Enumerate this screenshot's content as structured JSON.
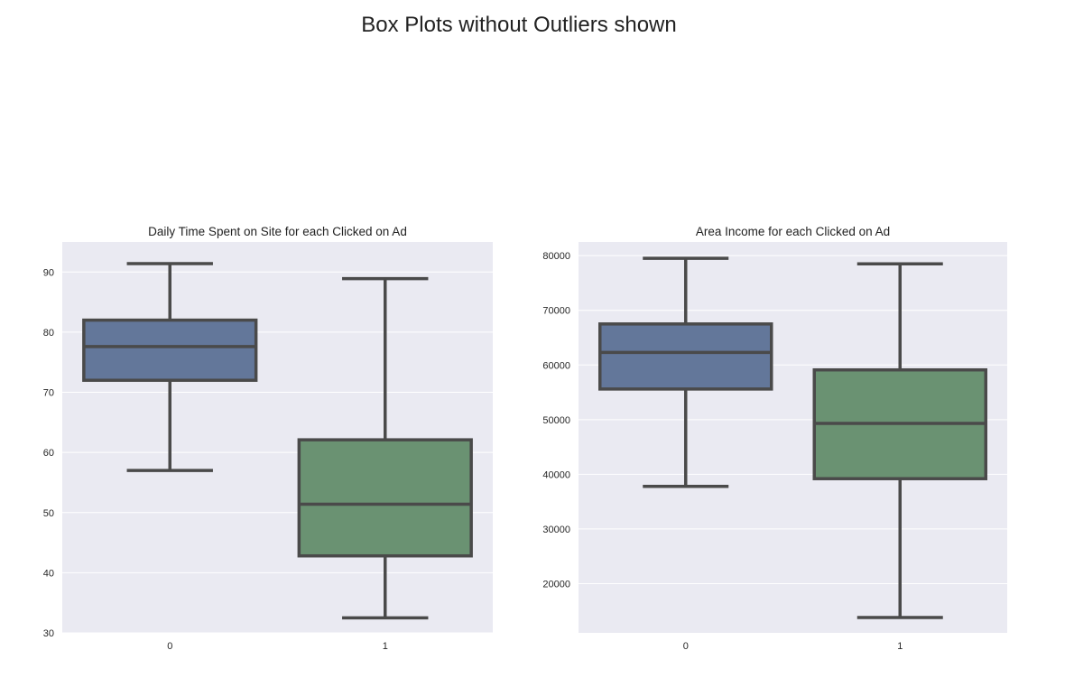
{
  "figure": {
    "title": "Box Plots without Outliers shown",
    "background": "#ffffff",
    "axes_background": "#eaeaf2",
    "grid_color": "#ffffff",
    "box_edge_color": "#4a4a4a",
    "colors": [
      "#63779a",
      "#6a9272"
    ]
  },
  "chart_data": [
    {
      "type": "box",
      "title": "Daily Time Spent on Site for each Clicked on Ad",
      "xlabel": "",
      "ylabel": "",
      "categories": [
        "0",
        "1"
      ],
      "ylim": [
        30,
        95
      ],
      "yticks": [
        30,
        40,
        50,
        60,
        70,
        80,
        90
      ],
      "ytick_labels": [
        "30",
        "40",
        "50",
        "60",
        "70",
        "80",
        "90"
      ],
      "grid": true,
      "boxes": [
        {
          "category": "0",
          "whislo": 57.0,
          "q1": 72.0,
          "med": 77.6,
          "q3": 82.0,
          "whishi": 91.4
        },
        {
          "category": "1",
          "whislo": 32.5,
          "q1": 42.8,
          "med": 51.4,
          "q3": 62.1,
          "whishi": 88.9
        }
      ]
    },
    {
      "type": "box",
      "title": "Area Income for each Clicked on Ad",
      "xlabel": "",
      "ylabel": "",
      "categories": [
        "0",
        "1"
      ],
      "ylim": [
        11000,
        82500
      ],
      "yticks": [
        20000,
        30000,
        40000,
        50000,
        60000,
        70000,
        80000
      ],
      "ytick_labels": [
        "20000",
        "30000",
        "40000",
        "50000",
        "60000",
        "70000",
        "80000"
      ],
      "grid": true,
      "boxes": [
        {
          "category": "0",
          "whislo": 37800,
          "q1": 55600,
          "med": 62300,
          "q3": 67500,
          "whishi": 79500
        },
        {
          "category": "1",
          "whislo": 13800,
          "q1": 39200,
          "med": 49300,
          "q3": 59100,
          "whishi": 78500
        }
      ]
    }
  ]
}
